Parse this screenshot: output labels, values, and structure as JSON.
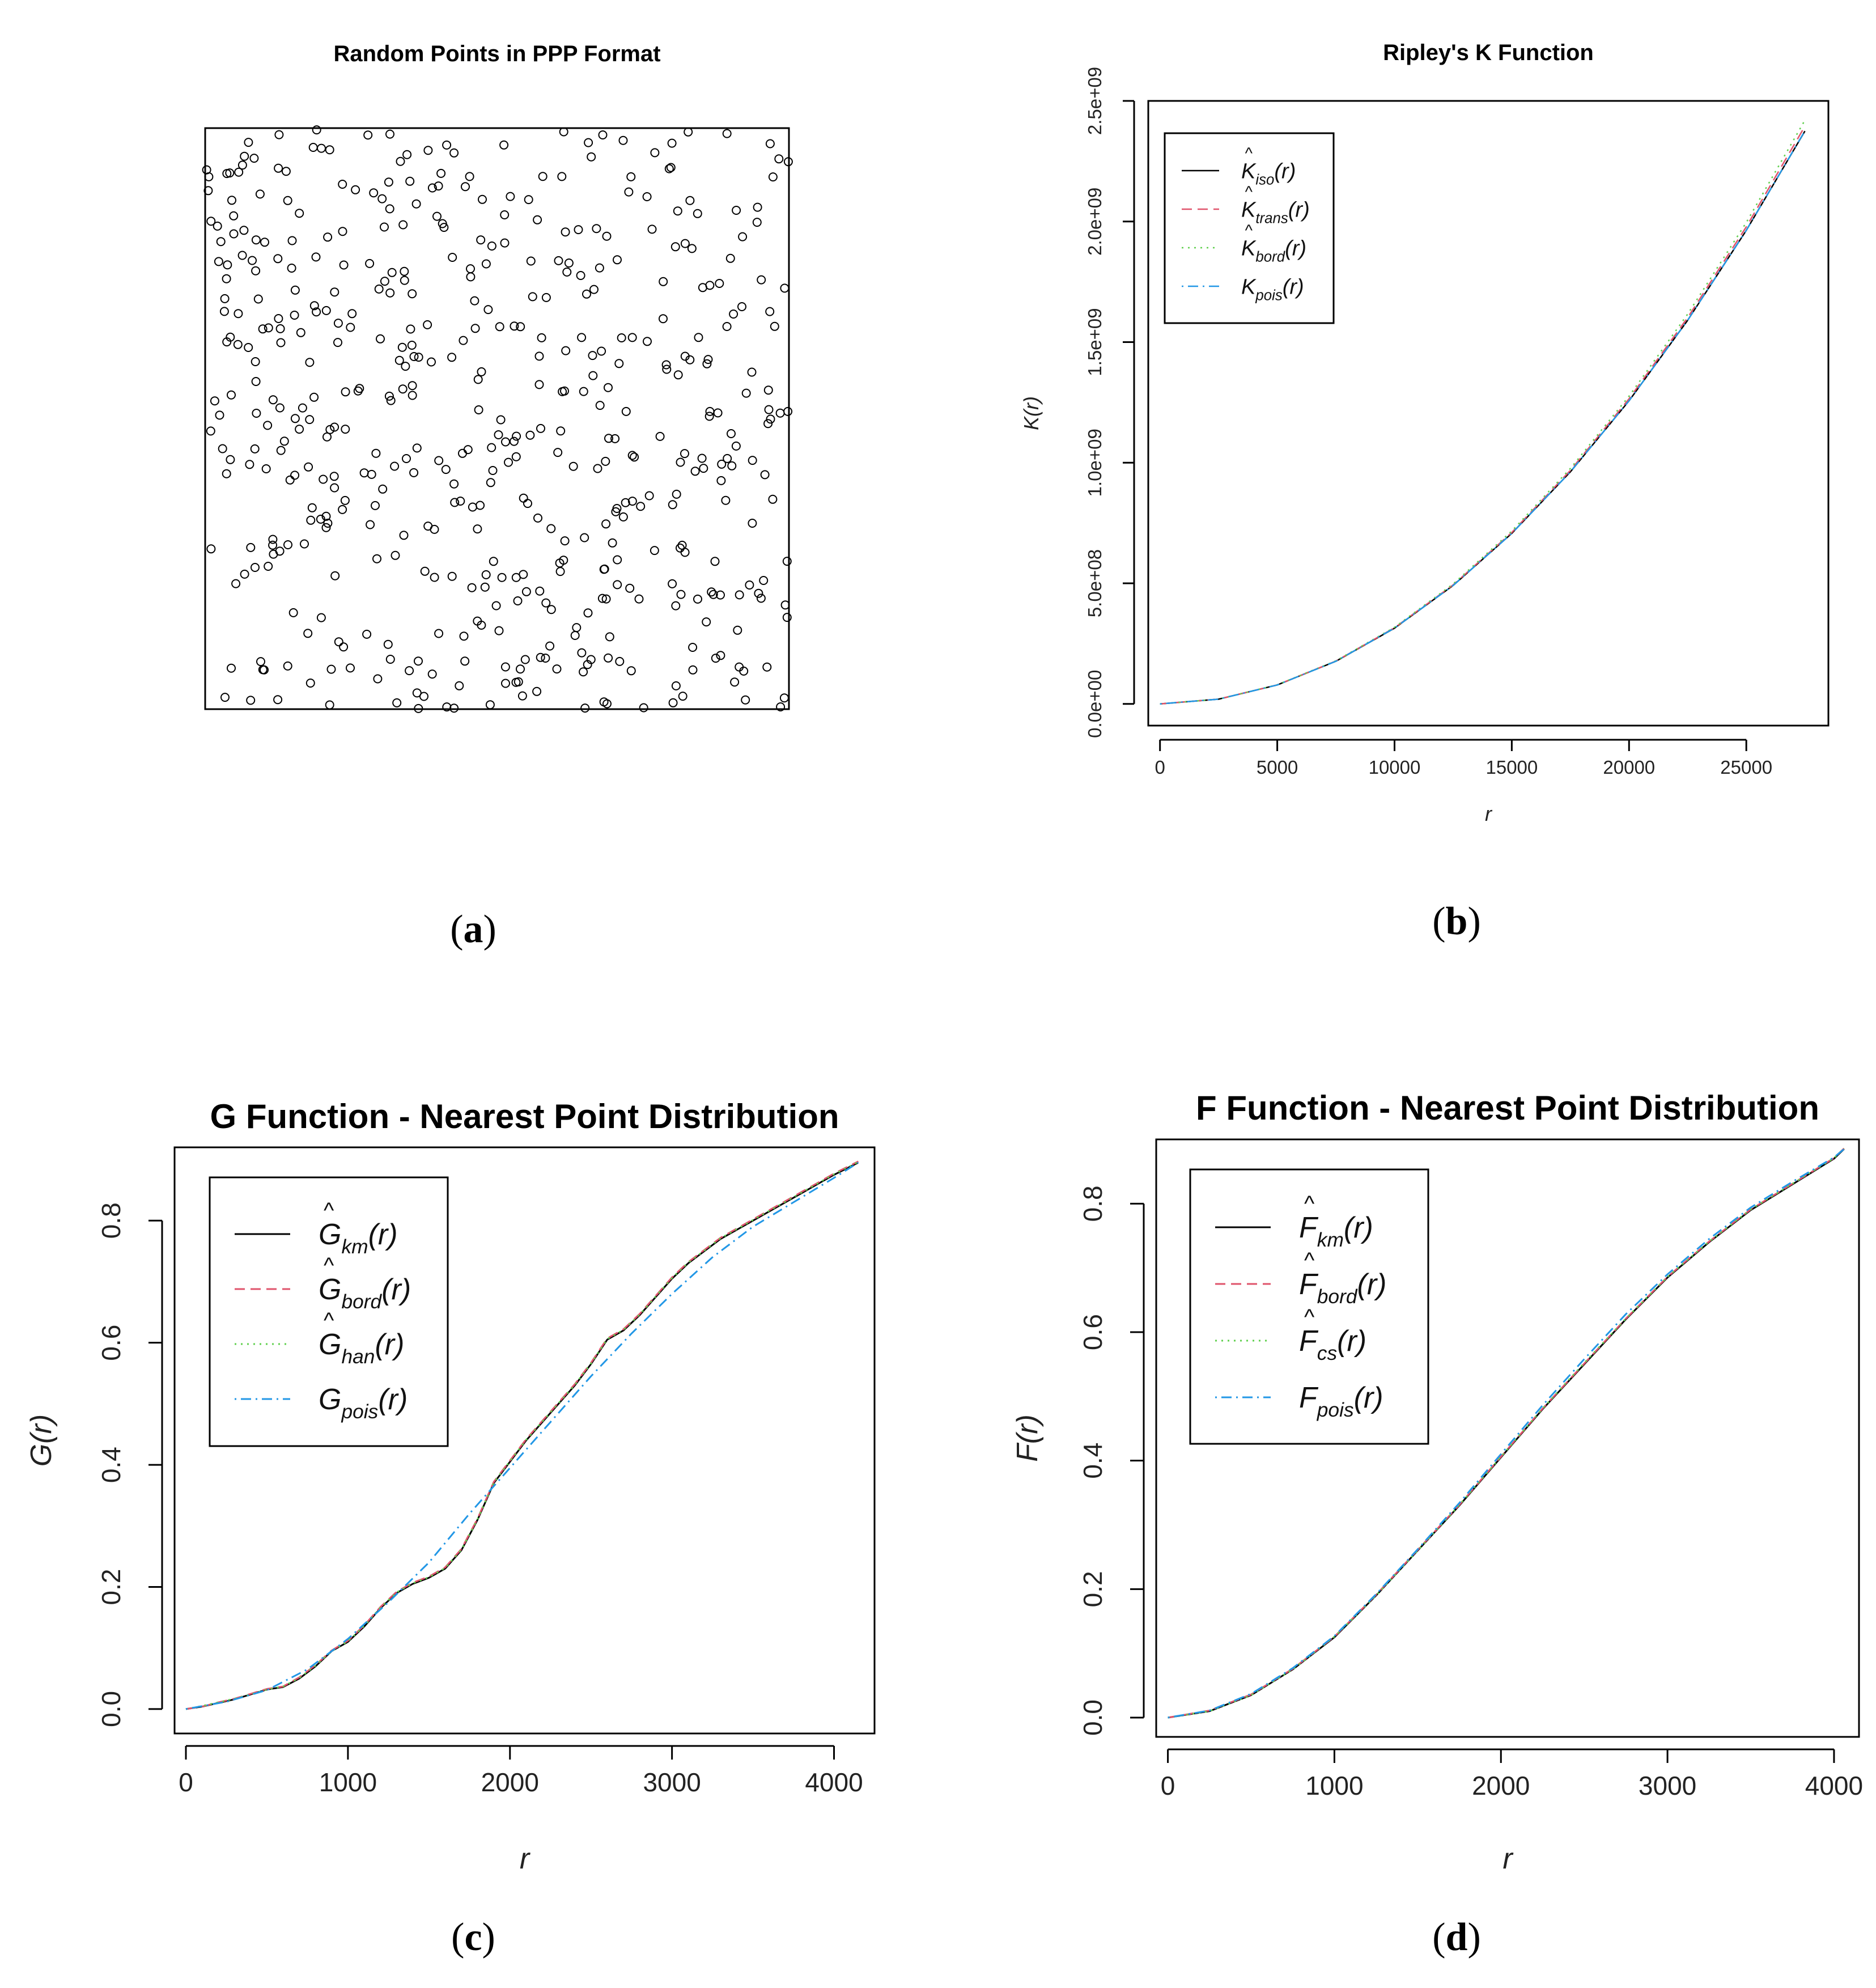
{
  "figure": {
    "panel_labels": [
      {
        "open": "(",
        "letter": "a",
        "close": ")"
      },
      {
        "open": "(",
        "letter": "b",
        "close": ")"
      },
      {
        "open": "(",
        "letter": "c",
        "close": ")"
      },
      {
        "open": "(",
        "letter": "d",
        "close": ")"
      }
    ]
  },
  "colors": {
    "axis": "#000000",
    "series_black": "#000000",
    "series_red": "#df536b",
    "series_green": "#61d04f",
    "series_blue": "#2297e6"
  },
  "chart_data": [
    {
      "id": "a",
      "type": "scatter",
      "title": "Random Points in PPP Format",
      "marker": "open-circle",
      "n_points": 500,
      "window": "square",
      "axes_shown": false,
      "xlabel": "",
      "ylabel": ""
    },
    {
      "id": "b",
      "type": "line",
      "title": "Ripley's K Function",
      "xlabel": "r",
      "ylabel": "K(r)",
      "xlim": [
        -500,
        28500
      ],
      "ylim": [
        -90000000,
        2500000000
      ],
      "x_ticks": [
        0,
        5000,
        10000,
        15000,
        20000,
        25000
      ],
      "x_tick_labels": [
        "0",
        "5000",
        "10000",
        "15000",
        "20000",
        "25000"
      ],
      "y_ticks": [
        0,
        500000000,
        1000000000,
        1500000000,
        2000000000,
        2500000000
      ],
      "y_tick_labels": [
        "0.0e+00",
        "5.0e+08",
        "1.0e+09",
        "1.5e+09",
        "2.0e+09",
        "2.5e+09"
      ],
      "legend": "top-left",
      "series": [
        {
          "name": "K̂iso(r)",
          "base": "K",
          "hat": true,
          "sub": "iso",
          "color": "#000000",
          "dash": "solid",
          "x": [
            0,
            2500,
            5000,
            7500,
            10000,
            12500,
            15000,
            17500,
            20000,
            22500,
            25000,
            27500
          ],
          "y": [
            0,
            19600000,
            78500000,
            176700000,
            314000000,
            490900000,
            706900000,
            962100000,
            1256600000,
            1590400000,
            1963500000,
            2375000000
          ]
        },
        {
          "name": "K̂trans(r)",
          "base": "K",
          "hat": true,
          "sub": "trans",
          "color": "#df536b",
          "dash": "dashed",
          "x": [
            0,
            2500,
            5000,
            7500,
            10000,
            12500,
            15000,
            17500,
            20000,
            22500,
            25000,
            27500
          ],
          "y": [
            0,
            19700000,
            78800000,
            177500000,
            315600000,
            493400000,
            710800000,
            968000000,
            1265000000,
            1601500000,
            1978000000,
            2395000000
          ]
        },
        {
          "name": "K̂bord(r)",
          "base": "K",
          "hat": true,
          "sub": "bord",
          "color": "#61d04f",
          "dash": "dotted",
          "x": [
            0,
            2500,
            5000,
            7500,
            10000,
            12500,
            15000,
            17500,
            20000,
            22500,
            25000,
            27500
          ],
          "y": [
            0,
            19800000,
            79200000,
            178500000,
            317500000,
            497000000,
            716500000,
            976000000,
            1276000000,
            1616000000,
            1996000000,
            2420000000
          ]
        },
        {
          "name": "Kpois(r)",
          "base": "K",
          "hat": false,
          "sub": "pois",
          "color": "#2297e6",
          "dash": "dotdash",
          "x": [
            0,
            2500,
            5000,
            7500,
            10000,
            12500,
            15000,
            17500,
            20000,
            22500,
            25000,
            27500
          ],
          "y": [
            0,
            19635000,
            78540000,
            176715000,
            314159000,
            490874000,
            706858000,
            962113000,
            1256637000,
            1590431000,
            1963495000,
            2375829000
          ]
        }
      ]
    },
    {
      "id": "c",
      "type": "line",
      "title": "G Function - Nearest Point Distribution",
      "xlabel": "r",
      "ylabel": "G(r)",
      "xlim": [
        -70,
        4250
      ],
      "ylim": [
        -0.04,
        0.92
      ],
      "x_ticks": [
        0,
        1000,
        2000,
        3000,
        4000
      ],
      "x_tick_labels": [
        "0",
        "1000",
        "2000",
        "3000",
        "4000"
      ],
      "y_ticks": [
        0,
        0.2,
        0.4,
        0.6,
        0.8
      ],
      "y_tick_labels": [
        "0.0",
        "0.2",
        "0.4",
        "0.6",
        "0.8"
      ],
      "legend": "top-left",
      "series": [
        {
          "name": "Ĝkm(r)",
          "base": "G",
          "hat": true,
          "sub": "km",
          "color": "#000000",
          "dash": "solid",
          "x": [
            0,
            100,
            200,
            300,
            400,
            500,
            600,
            700,
            800,
            900,
            1000,
            1100,
            1200,
            1300,
            1400,
            1500,
            1600,
            1700,
            1800,
            1900,
            2000,
            2100,
            2200,
            2300,
            2400,
            2500,
            2600,
            2700,
            2800,
            2900,
            3000,
            3100,
            3200,
            3300,
            3400,
            3500,
            3600,
            3700,
            3800,
            3900,
            4000,
            4150
          ],
          "y": [
            0,
            0.004,
            0.01,
            0.016,
            0.024,
            0.032,
            0.036,
            0.05,
            0.07,
            0.095,
            0.11,
            0.135,
            0.165,
            0.19,
            0.205,
            0.215,
            0.23,
            0.26,
            0.31,
            0.37,
            0.405,
            0.44,
            0.47,
            0.5,
            0.53,
            0.565,
            0.605,
            0.62,
            0.645,
            0.675,
            0.705,
            0.73,
            0.75,
            0.77,
            0.785,
            0.8,
            0.815,
            0.83,
            0.845,
            0.86,
            0.875,
            0.895
          ]
        },
        {
          "name": "Ĝbord(r)",
          "base": "G",
          "hat": true,
          "sub": "bord",
          "color": "#df536b",
          "dash": "dashed",
          "x": [
            0,
            100,
            200,
            300,
            400,
            500,
            600,
            700,
            800,
            900,
            1000,
            1100,
            1200,
            1300,
            1400,
            1500,
            1600,
            1700,
            1800,
            1900,
            2000,
            2100,
            2200,
            2300,
            2400,
            2500,
            2600,
            2700,
            2800,
            2900,
            3000,
            3100,
            3200,
            3300,
            3400,
            3500,
            3600,
            3700,
            3800,
            3900,
            4000,
            4150
          ],
          "y": [
            0,
            0.004,
            0.011,
            0.017,
            0.025,
            0.033,
            0.037,
            0.052,
            0.072,
            0.096,
            0.112,
            0.137,
            0.167,
            0.192,
            0.207,
            0.217,
            0.232,
            0.262,
            0.312,
            0.372,
            0.407,
            0.442,
            0.472,
            0.502,
            0.532,
            0.567,
            0.607,
            0.622,
            0.647,
            0.677,
            0.707,
            0.732,
            0.752,
            0.772,
            0.787,
            0.802,
            0.817,
            0.832,
            0.847,
            0.862,
            0.877,
            0.897
          ]
        },
        {
          "name": "Ĝhan(r)",
          "base": "G",
          "hat": true,
          "sub": "han",
          "color": "#61d04f",
          "dash": "dotted",
          "x": [
            0,
            100,
            200,
            300,
            400,
            500,
            600,
            700,
            800,
            900,
            1000,
            1100,
            1200,
            1300,
            1400,
            1500,
            1600,
            1700,
            1800,
            1900,
            2000,
            2100,
            2200,
            2300,
            2400,
            2500,
            2600,
            2700,
            2800,
            2900,
            3000,
            3100,
            3200,
            3300,
            3400,
            3500,
            3600,
            3700,
            3800,
            3900,
            4000,
            4150
          ],
          "y": [
            0,
            0.005,
            0.011,
            0.017,
            0.024,
            0.032,
            0.037,
            0.051,
            0.071,
            0.095,
            0.111,
            0.136,
            0.166,
            0.191,
            0.206,
            0.216,
            0.231,
            0.261,
            0.311,
            0.371,
            0.406,
            0.441,
            0.471,
            0.501,
            0.531,
            0.566,
            0.606,
            0.621,
            0.646,
            0.676,
            0.706,
            0.731,
            0.751,
            0.771,
            0.786,
            0.801,
            0.816,
            0.831,
            0.846,
            0.861,
            0.876,
            0.896
          ]
        },
        {
          "name": "Gpois(r)",
          "base": "G",
          "hat": false,
          "sub": "pois",
          "color": "#2297e6",
          "dash": "dotdash",
          "x": [
            0,
            250,
            500,
            750,
            1000,
            1250,
            1500,
            1750,
            2000,
            2250,
            2500,
            2750,
            3000,
            3250,
            3500,
            3750,
            4000,
            4150
          ],
          "y": [
            0,
            0.012,
            0.031,
            0.065,
            0.115,
            0.175,
            0.24,
            0.32,
            0.395,
            0.47,
            0.545,
            0.615,
            0.68,
            0.74,
            0.79,
            0.83,
            0.87,
            0.895
          ]
        }
      ]
    },
    {
      "id": "d",
      "type": "line",
      "title": "F Function - Nearest Point Distribution",
      "xlabel": "r",
      "ylabel": "F(r)",
      "xlim": [
        -70,
        4150
      ],
      "ylim": [
        -0.03,
        0.9
      ],
      "x_ticks": [
        0,
        1000,
        2000,
        3000,
        4000
      ],
      "x_tick_labels": [
        "0",
        "1000",
        "2000",
        "3000",
        "4000"
      ],
      "y_ticks": [
        0,
        0.2,
        0.4,
        0.6,
        0.8
      ],
      "y_tick_labels": [
        "0.0",
        "0.2",
        "0.4",
        "0.6",
        "0.8"
      ],
      "legend": "top-left",
      "series": [
        {
          "name": "F̂km(r)",
          "base": "F",
          "hat": true,
          "sub": "km",
          "color": "#000000",
          "dash": "solid",
          "x": [
            0,
            250,
            500,
            750,
            1000,
            1250,
            1500,
            1750,
            2000,
            2250,
            2500,
            2750,
            3000,
            3250,
            3500,
            3750,
            4000,
            4060
          ],
          "y": [
            0,
            0.01,
            0.035,
            0.075,
            0.125,
            0.19,
            0.26,
            0.33,
            0.405,
            0.48,
            0.55,
            0.62,
            0.685,
            0.74,
            0.79,
            0.83,
            0.87,
            0.885
          ]
        },
        {
          "name": "F̂bord(r)",
          "base": "F",
          "hat": true,
          "sub": "bord",
          "color": "#df536b",
          "dash": "dashed",
          "x": [
            0,
            250,
            500,
            750,
            1000,
            1250,
            1500,
            1750,
            2000,
            2250,
            2500,
            2750,
            3000,
            3250,
            3500,
            3750,
            4000,
            4060
          ],
          "y": [
            0,
            0.011,
            0.036,
            0.076,
            0.126,
            0.191,
            0.261,
            0.331,
            0.406,
            0.481,
            0.551,
            0.621,
            0.686,
            0.741,
            0.791,
            0.831,
            0.871,
            0.886
          ]
        },
        {
          "name": "F̂cs(r)",
          "base": "F",
          "hat": true,
          "sub": "cs",
          "color": "#61d04f",
          "dash": "dotted",
          "x": [
            0,
            250,
            500,
            750,
            1000,
            1250,
            1500,
            1750,
            2000,
            2250,
            2500,
            2750,
            3000,
            3250,
            3500,
            3750,
            4000,
            4060
          ],
          "y": [
            0,
            0.01,
            0.035,
            0.075,
            0.126,
            0.19,
            0.26,
            0.331,
            0.406,
            0.481,
            0.552,
            0.621,
            0.686,
            0.741,
            0.791,
            0.831,
            0.871,
            0.886
          ]
        },
        {
          "name": "Fpois(r)",
          "base": "F",
          "hat": false,
          "sub": "pois",
          "color": "#2297e6",
          "dash": "dotdash",
          "x": [
            0,
            250,
            500,
            750,
            1000,
            1250,
            1500,
            1750,
            2000,
            2250,
            2500,
            2750,
            3000,
            3250,
            3500,
            3750,
            4000,
            4060
          ],
          "y": [
            0,
            0.011,
            0.037,
            0.077,
            0.127,
            0.192,
            0.262,
            0.334,
            0.41,
            0.486,
            0.558,
            0.628,
            0.69,
            0.745,
            0.794,
            0.834,
            0.872,
            0.885
          ]
        }
      ]
    }
  ]
}
